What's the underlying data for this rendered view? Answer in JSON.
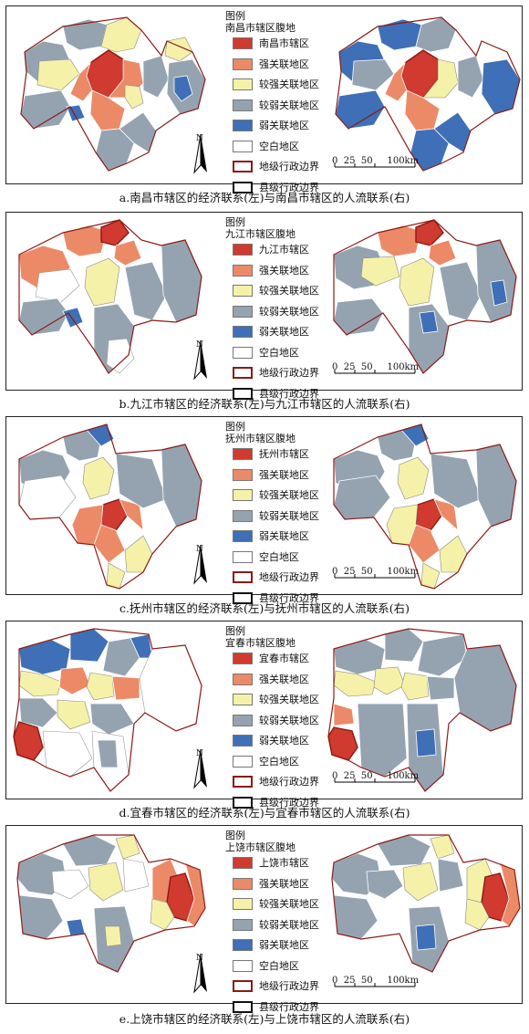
{
  "legend_common": {
    "title": "图例",
    "strong": "强关联地区",
    "mstrong": "较强关联地区",
    "mweak": "较弱关联地区",
    "weak": "弱关联地区",
    "blank": "空白地区",
    "pref": "地级行政边界",
    "county": "县级行政边界"
  },
  "scale": {
    "ticks": [
      "0",
      "25",
      "50",
      "100km"
    ]
  },
  "north": "N",
  "colors": {
    "core": "#d03a2f",
    "strong": "#ec8a68",
    "mstrong": "#f6f1a8",
    "mweak": "#95a3b1",
    "weak": "#3f6fb6",
    "blank": "#ffffff",
    "pref_border": "#8b1a14"
  },
  "panels": [
    {
      "id": "a",
      "hinterland": "南昌市辖区腹地",
      "core": "南昌市辖区",
      "caption": "a.南昌市辖区的经济联系(左)与南昌市辖区的人流联系(右)"
    },
    {
      "id": "b",
      "hinterland": "九江市辖区腹地",
      "core": "九江市辖区",
      "caption": "b.九江市辖区的经济联系(左)与九江市辖区的人流联系(右)"
    },
    {
      "id": "c",
      "hinterland": "抚州市辖区腹地",
      "core": "抚州市辖区",
      "caption": "c.抚州市辖区的经济联系(左)与抚州市辖区的人流联系(右)"
    },
    {
      "id": "d",
      "hinterland": "宜春市辖区腹地",
      "core": "宜春市辖区",
      "caption": "d.宜春市辖区的经济联系(左)与宜春市辖区的人流联系(右)"
    },
    {
      "id": "e",
      "hinterland": "上饶市辖区腹地",
      "core": "上饶市辖区",
      "caption": "e.上饶市辖区的经济联系(左)与上饶市辖区的人流联系(右)"
    }
  ]
}
